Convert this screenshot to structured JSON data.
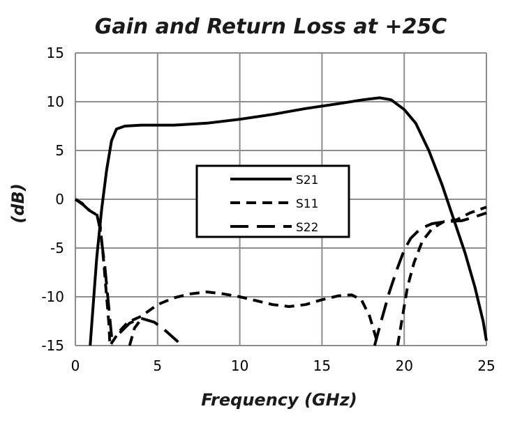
{
  "chart_data": {
    "type": "line",
    "title": "Gain and Return Loss at +25C",
    "xlabel": "Frequency (GHz)",
    "ylabel": "(dB)",
    "xlim": [
      0,
      25
    ],
    "ylim": [
      -15,
      15
    ],
    "xticks": [
      0,
      5,
      10,
      15,
      20,
      25
    ],
    "yticks": [
      15,
      10,
      5,
      0,
      -5,
      -10,
      -15
    ],
    "grid": true,
    "legend_placement": "center",
    "series": [
      {
        "name": "S21",
        "dash": "solid",
        "points": [
          [
            0.9,
            -15
          ],
          [
            1.3,
            -6
          ],
          [
            1.6,
            -1
          ],
          [
            1.9,
            3
          ],
          [
            2.2,
            6
          ],
          [
            2.5,
            7.2
          ],
          [
            3,
            7.5
          ],
          [
            4,
            7.6
          ],
          [
            6,
            7.6
          ],
          [
            8,
            7.8
          ],
          [
            10,
            8.2
          ],
          [
            12,
            8.7
          ],
          [
            14,
            9.3
          ],
          [
            16,
            9.8
          ],
          [
            17.5,
            10.2
          ],
          [
            18.5,
            10.4
          ],
          [
            19.2,
            10.2
          ],
          [
            20,
            9.2
          ],
          [
            20.7,
            7.8
          ],
          [
            21.5,
            5
          ],
          [
            22.3,
            1.5
          ],
          [
            23,
            -2
          ],
          [
            23.7,
            -5.5
          ],
          [
            24.3,
            -9
          ],
          [
            24.8,
            -12.5
          ],
          [
            25,
            -14.5
          ]
        ]
      },
      {
        "name": "S11",
        "dash": "short",
        "points": [
          [
            0,
            0
          ],
          [
            0.4,
            -0.4
          ],
          [
            0.9,
            -1.2
          ],
          [
            1.3,
            -1.6
          ],
          [
            1.5,
            -2.5
          ],
          [
            1.7,
            -6
          ],
          [
            1.9,
            -10
          ],
          [
            2.05,
            -13
          ],
          [
            2.1,
            -15
          ],
          [
            2.7,
            -13.5
          ],
          [
            3.2,
            -12.6
          ],
          [
            4,
            -12
          ],
          [
            5,
            -10.8
          ],
          [
            6,
            -10.1
          ],
          [
            7,
            -9.7
          ],
          [
            8,
            -9.5
          ],
          [
            9,
            -9.7
          ],
          [
            10,
            -10
          ],
          [
            11,
            -10.4
          ],
          [
            12,
            -10.8
          ],
          [
            13,
            -11
          ],
          [
            14,
            -10.8
          ],
          [
            15,
            -10.3
          ],
          [
            16,
            -9.9
          ],
          [
            16.8,
            -9.8
          ],
          [
            17.4,
            -10.3
          ],
          [
            17.9,
            -12
          ],
          [
            18.3,
            -14.3
          ],
          [
            18.4,
            -15
          ]
        ]
      },
      {
        "name": "S22",
        "dash": "long",
        "points": [
          [
            0,
            0
          ],
          [
            0.5,
            -0.6
          ],
          [
            1,
            -1.4
          ],
          [
            1.3,
            -1.5
          ],
          [
            1.5,
            -3
          ],
          [
            1.8,
            -7
          ],
          [
            2,
            -10.5
          ],
          [
            2.2,
            -14
          ],
          [
            2.25,
            -15
          ]
        ]
      },
      {
        "name": "S22b",
        "dash": "long",
        "points": [
          [
            2.7,
            -13.7
          ],
          [
            3.3,
            -12.7
          ],
          [
            4,
            -12.2
          ],
          [
            4.8,
            -12.6
          ],
          [
            5.5,
            -13.5
          ],
          [
            6.5,
            -15
          ]
        ]
      },
      {
        "name": "S22c",
        "dash": "short",
        "points": [
          [
            3.3,
            -15
          ],
          [
            3.6,
            -13.2
          ],
          [
            4,
            -12.3
          ]
        ]
      },
      {
        "name": "S22d",
        "dash": "long",
        "points": [
          [
            18.2,
            -15
          ],
          [
            18.6,
            -12.5
          ],
          [
            19.1,
            -9.5
          ],
          [
            19.6,
            -7
          ],
          [
            20,
            -5.2
          ],
          [
            20.4,
            -4
          ],
          [
            21,
            -3
          ],
          [
            21.7,
            -2.5
          ],
          [
            22.5,
            -2.3
          ],
          [
            23.5,
            -2.2
          ],
          [
            24.3,
            -1.8
          ],
          [
            25,
            -1.4
          ]
        ]
      },
      {
        "name": "S11b",
        "dash": "short",
        "points": [
          [
            19.6,
            -15
          ],
          [
            19.9,
            -12
          ],
          [
            20.2,
            -9
          ],
          [
            20.6,
            -6.5
          ],
          [
            21.1,
            -4.3
          ],
          [
            21.7,
            -3
          ],
          [
            22.4,
            -2.3
          ],
          [
            23.2,
            -2.1
          ],
          [
            24,
            -1.4
          ],
          [
            25,
            -0.8
          ]
        ]
      }
    ],
    "legend": [
      "S21",
      "S11",
      "S22"
    ]
  }
}
